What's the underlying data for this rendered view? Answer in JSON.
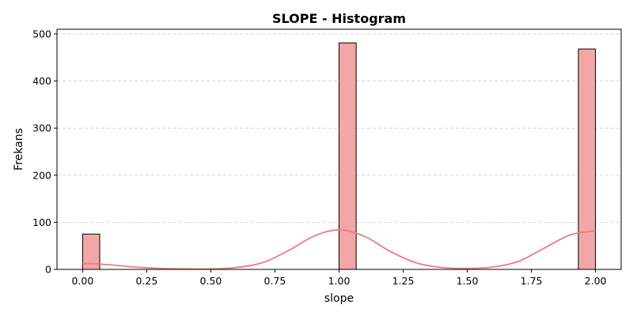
{
  "chart_data": {
    "type": "bar",
    "title": "SLOPE - Histogram",
    "xlabel": "slope",
    "ylabel": "Frekans",
    "xlim": [
      -0.1,
      2.1
    ],
    "ylim": [
      0,
      510
    ],
    "xticks": [
      0.0,
      0.25,
      0.5,
      0.75,
      1.0,
      1.25,
      1.5,
      1.75,
      2.0
    ],
    "xtick_labels": [
      "0.00",
      "0.25",
      "0.50",
      "0.75",
      "1.00",
      "1.25",
      "1.50",
      "1.75",
      "2.00"
    ],
    "yticks": [
      0,
      100,
      200,
      300,
      400,
      500
    ],
    "ytick_labels": [
      "0",
      "100",
      "200",
      "300",
      "400",
      "500"
    ],
    "grid": "y-dashed",
    "bin_width": 0.0667,
    "bins": [
      {
        "start": 0.0,
        "end": 0.0667,
        "count": 75
      },
      {
        "start": 1.0,
        "end": 1.0667,
        "count": 481
      },
      {
        "start": 1.9333,
        "end": 2.0,
        "count": 468
      }
    ],
    "kde": {
      "x": [
        0.0,
        0.1,
        0.2,
        0.3,
        0.4,
        0.5,
        0.6,
        0.7,
        0.8,
        0.9,
        1.0,
        1.1,
        1.2,
        1.3,
        1.4,
        1.5,
        1.6,
        1.7,
        1.8,
        1.9,
        2.0
      ],
      "y": [
        13,
        10,
        5,
        2,
        1,
        1,
        4,
        14,
        39,
        70,
        84,
        70,
        38,
        14,
        4,
        2,
        5,
        17,
        45,
        73,
        82
      ]
    },
    "colors": {
      "bar_fill": "#f4a6a6",
      "bar_edge": "#000000",
      "kde_line": "#ee7b7b"
    }
  }
}
